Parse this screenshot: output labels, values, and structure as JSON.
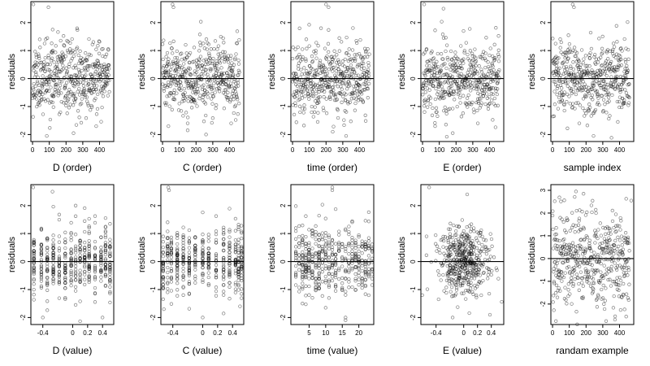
{
  "chart_data": [
    {
      "type": "scatter",
      "xlabel": "D (order)",
      "ylabel": "residuals",
      "xlim": [
        -10,
        485
      ],
      "ylim": [
        -2.25,
        2.75
      ],
      "xticks": [
        0,
        100,
        200,
        300,
        400
      ],
      "yticks": [
        -2,
        -1,
        0,
        1,
        2
      ],
      "hline": 0,
      "n": 460,
      "seed": 11,
      "xmode": "order",
      "yspread": 0.62,
      "outliers": [
        [
          5,
          2.65
        ],
        [
          95,
          2.55
        ],
        [
          120,
          1.75
        ],
        [
          85,
          -2.05
        ],
        [
          245,
          -1.95
        ],
        [
          380,
          -1.7
        ]
      ]
    },
    {
      "type": "scatter",
      "xlabel": "C (order)",
      "ylabel": "residuals",
      "xlim": [
        -10,
        485
      ],
      "ylim": [
        -2.25,
        2.75
      ],
      "xticks": [
        0,
        100,
        200,
        300,
        400
      ],
      "yticks": [
        -2,
        -1,
        0,
        1,
        2
      ],
      "hline": 0,
      "n": 460,
      "seed": 23,
      "xmode": "order",
      "yspread": 0.62,
      "outliers": [
        [
          60,
          2.65
        ],
        [
          65,
          2.55
        ],
        [
          35,
          -1.7
        ],
        [
          150,
          -1.85
        ],
        [
          260,
          -2.0
        ],
        [
          410,
          -1.6
        ]
      ]
    },
    {
      "type": "scatter",
      "xlabel": "time (order)",
      "ylabel": "residuals",
      "xlim": [
        -10,
        485
      ],
      "ylim": [
        -2.25,
        2.75
      ],
      "xticks": [
        0,
        100,
        200,
        300,
        400
      ],
      "yticks": [
        -2,
        -1,
        0,
        1,
        2
      ],
      "hline": 0,
      "n": 460,
      "seed": 37,
      "xmode": "order",
      "yspread": 0.62,
      "outliers": [
        [
          200,
          2.65
        ],
        [
          215,
          2.55
        ],
        [
          170,
          1.8
        ],
        [
          240,
          -1.9
        ],
        [
          320,
          -2.05
        ],
        [
          150,
          -1.55
        ]
      ]
    },
    {
      "type": "scatter",
      "xlabel": "E (order)",
      "ylabel": "residuals",
      "xlim": [
        -10,
        485
      ],
      "ylim": [
        -2.25,
        2.75
      ],
      "xticks": [
        0,
        100,
        200,
        300,
        400
      ],
      "yticks": [
        -2,
        -1,
        0,
        1,
        2
      ],
      "hline": 0,
      "n": 460,
      "seed": 41,
      "xmode": "order",
      "yspread": 0.62,
      "outliers": [
        [
          10,
          2.65
        ],
        [
          125,
          2.5
        ],
        [
          180,
          -1.95
        ],
        [
          75,
          -1.7
        ],
        [
          245,
          1.7
        ],
        [
          330,
          -1.6
        ]
      ]
    },
    {
      "type": "scatter",
      "xlabel": "sample index",
      "ylabel": "residuals",
      "xlim": [
        -10,
        485
      ],
      "ylim": [
        -2.25,
        2.75
      ],
      "xticks": [
        0,
        100,
        200,
        300,
        400
      ],
      "yticks": [
        -2,
        -1,
        0,
        1,
        2
      ],
      "hline": 0,
      "n": 460,
      "seed": 53,
      "xmode": "order",
      "yspread": 0.62,
      "outliers": [
        [
          120,
          2.65
        ],
        [
          128,
          2.55
        ],
        [
          245,
          -2.05
        ],
        [
          390,
          -1.55
        ],
        [
          160,
          -1.6
        ],
        [
          95,
          1.55
        ]
      ]
    },
    {
      "type": "scatter",
      "xlabel": "D (value)",
      "ylabel": "residuals",
      "xlim": [
        -0.56,
        0.55
      ],
      "ylim": [
        -2.25,
        2.75
      ],
      "xticks": [
        -0.4,
        0.0,
        0.2,
        0.4
      ],
      "yticks": [
        -2,
        -1,
        0,
        1,
        2
      ],
      "hline": 0,
      "n": 460,
      "seed": 67,
      "xmode": "columns",
      "columns": [
        -0.52,
        -0.42,
        -0.34,
        -0.26,
        -0.18,
        -0.1,
        -0.02,
        0.04,
        0.1,
        0.16,
        0.22,
        0.3,
        0.38,
        0.44,
        0.5
      ],
      "yspread": 0.6,
      "outliers": [
        [
          -0.53,
          2.65
        ],
        [
          -0.27,
          2.5
        ],
        [
          -0.4,
          -2.0
        ],
        [
          0.04,
          -1.55
        ],
        [
          0.4,
          -2.0
        ]
      ]
    },
    {
      "type": "scatter",
      "xlabel": "C (value)",
      "ylabel": "residuals",
      "xlim": [
        -0.56,
        0.55
      ],
      "ylim": [
        -2.25,
        2.75
      ],
      "xticks": [
        -0.4,
        0.0,
        0.2,
        0.4
      ],
      "yticks": [
        -2,
        -1,
        0,
        1,
        2
      ],
      "hline": 0,
      "n": 460,
      "seed": 79,
      "xmode": "columns",
      "columns": [
        -0.53,
        -0.47,
        -0.42,
        -0.34,
        -0.26,
        -0.18,
        -0.1,
        0.0,
        0.08,
        0.18,
        0.28,
        0.36,
        0.44,
        0.48,
        0.52
      ],
      "yspread": 0.6,
      "outliers": [
        [
          -0.46,
          2.65
        ],
        [
          -0.45,
          2.55
        ],
        [
          -0.52,
          -1.7
        ],
        [
          0.0,
          -2.0
        ],
        [
          0.5,
          -1.6
        ]
      ]
    },
    {
      "type": "scatter",
      "xlabel": "time (value)",
      "ylabel": "residuals",
      "xlim": [
        -0.5,
        24.5
      ],
      "ylim": [
        -2.25,
        2.75
      ],
      "xticks": [
        5,
        10,
        15,
        20
      ],
      "yticks": [
        -2,
        -1,
        0,
        1,
        2
      ],
      "hline": 0,
      "n": 460,
      "seed": 97,
      "xmode": "columns",
      "columns": [
        1,
        2,
        3,
        4,
        5,
        6,
        7,
        8,
        9,
        10,
        11,
        12,
        13,
        14,
        15,
        16,
        17,
        18,
        19,
        20,
        21,
        22,
        23,
        24
      ],
      "yspread": 0.6,
      "outliers": [
        [
          12,
          2.65
        ],
        [
          12,
          2.55
        ],
        [
          10,
          -1.65
        ],
        [
          16,
          -2.0
        ],
        [
          3,
          -1.5
        ]
      ]
    },
    {
      "type": "scatter",
      "xlabel": "E (value)",
      "ylabel": "residuals",
      "xlim": [
        -0.62,
        0.58
      ],
      "ylim": [
        -2.25,
        2.75
      ],
      "xticks": [
        -0.4,
        0.0,
        0.2,
        0.4
      ],
      "yticks": [
        -2,
        -1,
        0,
        1,
        2
      ],
      "hline": 0,
      "n": 460,
      "seed": 103,
      "xmode": "cluster",
      "yspread": 0.6,
      "outliers": [
        [
          -0.5,
          2.65
        ],
        [
          -0.16,
          -2.0
        ],
        [
          -0.6,
          -1.2
        ],
        [
          0.38,
          -1.9
        ],
        [
          0.05,
          2.4
        ]
      ]
    },
    {
      "type": "scatter",
      "xlabel": "randam example",
      "ylabel": "residuals",
      "xlim": [
        -10,
        485
      ],
      "ylim": [
        -2.9,
        3.25
      ],
      "xticks": [
        0,
        100,
        200,
        300,
        400
      ],
      "yticks": [
        -2,
        -1,
        0,
        1,
        2,
        3
      ],
      "hline": 0,
      "n": 460,
      "seed": 131,
      "xmode": "order",
      "yspread": 1.05,
      "outliers": [
        [
          140,
          2.95
        ],
        [
          185,
          2.85
        ],
        [
          470,
          2.55
        ],
        [
          20,
          -2.75
        ],
        [
          320,
          -2.75
        ],
        [
          440,
          -2.55
        ]
      ]
    }
  ]
}
